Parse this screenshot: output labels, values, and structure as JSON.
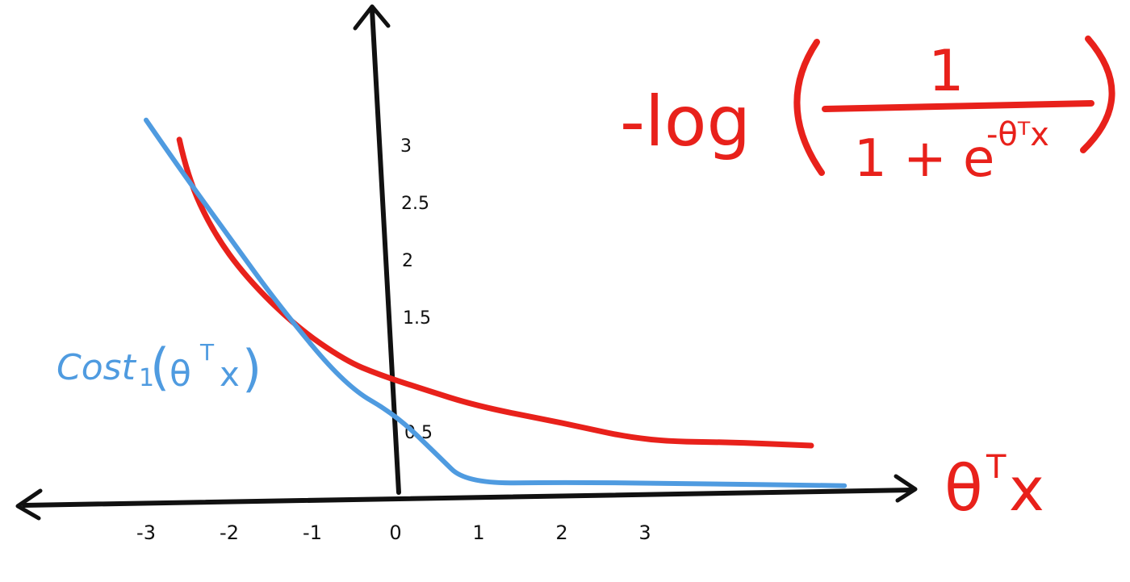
{
  "chart_data": {
    "type": "line",
    "title": "",
    "xlabel": "θᵀx",
    "ylabel": "",
    "x_ticks": [
      {
        "value": -3,
        "label": "-3"
      },
      {
        "value": -2,
        "label": "-2"
      },
      {
        "value": -1,
        "label": "-1"
      },
      {
        "value": 0,
        "label": "0"
      },
      {
        "value": 1,
        "label": "1"
      },
      {
        "value": 2,
        "label": "2"
      },
      {
        "value": 3,
        "label": "3"
      }
    ],
    "y_ticks": [
      {
        "value": 0.5,
        "label": "0.5"
      },
      {
        "value": 1.5,
        "label": "1.5"
      },
      {
        "value": 2,
        "label": "2"
      },
      {
        "value": 2.5,
        "label": "2.5"
      },
      {
        "value": 3,
        "label": "3"
      }
    ],
    "xlim": [
      -4.4,
      6.0
    ],
    "ylim": [
      0,
      3.3
    ],
    "grid": false,
    "series": [
      {
        "name": "-log(1/(1+e^(-θᵀx)))",
        "color": "#e8211b",
        "points": [
          [
            -2.6,
            3.05
          ],
          [
            -2.5,
            2.72
          ],
          [
            -2.2,
            2.25
          ],
          [
            -1.8,
            1.85
          ],
          [
            -1.2,
            1.42
          ],
          [
            -0.6,
            1.12
          ],
          [
            -0.2,
            1.0
          ],
          [
            0.3,
            0.88
          ],
          [
            1.0,
            0.72
          ],
          [
            2.0,
            0.58
          ],
          [
            3.0,
            0.42
          ],
          [
            4.0,
            0.41
          ],
          [
            5.0,
            0.38
          ]
        ]
      },
      {
        "name": "Cost₁(θᵀx)",
        "color": "#4f9be0",
        "points": [
          [
            -3.0,
            3.22
          ],
          [
            -2.6,
            2.8
          ],
          [
            -2.0,
            2.2
          ],
          [
            -1.4,
            1.6
          ],
          [
            -0.6,
            0.9
          ],
          [
            0.0,
            0.65
          ],
          [
            0.5,
            0.3
          ],
          [
            0.85,
            0.05
          ],
          [
            2.0,
            0.06
          ],
          [
            3.5,
            0.05
          ],
          [
            5.4,
            0.03
          ]
        ]
      }
    ],
    "annotations": [
      {
        "text": "Cost₁(θᵀx)",
        "color": "#4f9be0",
        "series": 1
      },
      {
        "text": "-log(1/(1+e^(-θᵀx)))",
        "color": "#e8211b",
        "series": 0
      }
    ]
  },
  "formula": {
    "prefix": "-log",
    "numerator": "1",
    "denominator_base": "1 + e",
    "exponent": "-θᵀx"
  },
  "cost_label": {
    "name": "Cost",
    "subscript": "1",
    "arg_open": "(",
    "arg": "θ",
    "arg_sup": "T",
    "arg_var": "x",
    "arg_close": ")"
  },
  "x_axis_label": {
    "theta": "θ",
    "sup": "T",
    "var": "x"
  },
  "colors": {
    "axis": "#111111",
    "red": "#e8211b",
    "blue": "#4f9be0"
  }
}
